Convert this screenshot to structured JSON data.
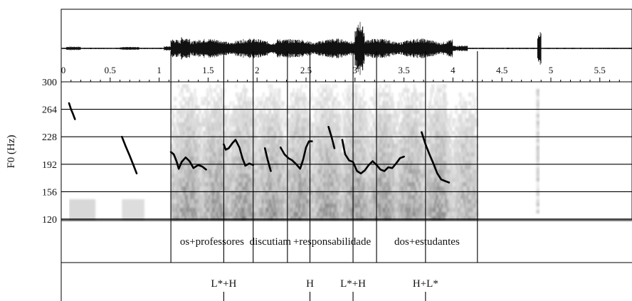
{
  "chart_data": {
    "type": "line",
    "title": "",
    "ylabel": "F0 (Hz)",
    "xlabel": "",
    "xlim": [
      0,
      5.75
    ],
    "ylim": [
      120,
      300
    ],
    "x_ticks": [
      {
        "value": 0,
        "label": "0"
      },
      {
        "value": 0.5,
        "label": "0.5"
      },
      {
        "value": 1,
        "label": "1"
      },
      {
        "value": 1.5,
        "label": "1.5"
      },
      {
        "value": 2,
        "label": "2"
      },
      {
        "value": 2.5,
        "label": "2.5"
      },
      {
        "value": 3,
        "label": "3"
      },
      {
        "value": 3.5,
        "label": "3.5"
      },
      {
        "value": 4,
        "label": "4"
      },
      {
        "value": 4.5,
        "label": "4.5"
      },
      {
        "value": 5,
        "label": "5"
      },
      {
        "value": 5.5,
        "label": "5.5"
      }
    ],
    "y_ticks": [
      {
        "value": 300,
        "label": "300"
      },
      {
        "value": 264,
        "label": "264"
      },
      {
        "value": 228,
        "label": "228"
      },
      {
        "value": 192,
        "label": "192"
      },
      {
        "value": 156,
        "label": "156"
      },
      {
        "value": 120,
        "label": "120"
      }
    ],
    "pitch_contours": [
      [
        [
          0.08,
          272
        ],
        [
          0.1,
          264
        ],
        [
          0.12,
          258
        ],
        [
          0.14,
          251
        ]
      ],
      [
        [
          0.62,
          228
        ],
        [
          0.66,
          215
        ],
        [
          0.7,
          203
        ],
        [
          0.74,
          190
        ],
        [
          0.77,
          180
        ]
      ],
      [
        [
          1.12,
          208
        ],
        [
          1.15,
          205
        ],
        [
          1.18,
          195
        ],
        [
          1.2,
          186
        ],
        [
          1.23,
          195
        ],
        [
          1.27,
          201
        ],
        [
          1.31,
          196
        ],
        [
          1.35,
          187
        ],
        [
          1.4,
          191
        ],
        [
          1.44,
          189
        ],
        [
          1.48,
          185
        ]
      ],
      [
        [
          1.66,
          218
        ],
        [
          1.68,
          211
        ],
        [
          1.71,
          213
        ],
        [
          1.75,
          220
        ],
        [
          1.78,
          224
        ],
        [
          1.82,
          214
        ],
        [
          1.85,
          200
        ],
        [
          1.88,
          190
        ],
        [
          1.92,
          193
        ],
        [
          1.96,
          191
        ]
      ],
      [
        [
          2.08,
          213
        ],
        [
          2.11,
          197
        ],
        [
          2.14,
          183
        ]
      ],
      [
        [
          2.24,
          214
        ],
        [
          2.28,
          205
        ],
        [
          2.32,
          200
        ],
        [
          2.36,
          197
        ],
        [
          2.4,
          192
        ],
        [
          2.44,
          186
        ],
        [
          2.47,
          198
        ],
        [
          2.5,
          214
        ],
        [
          2.53,
          222
        ],
        [
          2.56,
          222
        ]
      ],
      [
        [
          2.73,
          241
        ],
        [
          2.76,
          228
        ],
        [
          2.79,
          213
        ]
      ],
      [
        [
          2.87,
          224
        ],
        [
          2.9,
          205
        ],
        [
          2.94,
          197
        ],
        [
          2.98,
          195
        ],
        [
          3.02,
          183
        ],
        [
          3.06,
          180
        ],
        [
          3.1,
          184
        ],
        [
          3.14,
          191
        ],
        [
          3.18,
          196
        ],
        [
          3.22,
          191
        ],
        [
          3.26,
          185
        ],
        [
          3.3,
          183
        ],
        [
          3.34,
          188
        ],
        [
          3.38,
          187
        ],
        [
          3.42,
          193
        ],
        [
          3.46,
          200
        ],
        [
          3.5,
          202
        ]
      ],
      [
        [
          3.68,
          234
        ],
        [
          3.72,
          218
        ],
        [
          3.76,
          205
        ],
        [
          3.8,
          193
        ],
        [
          3.84,
          180
        ],
        [
          3.88,
          172
        ],
        [
          3.92,
          170
        ],
        [
          3.96,
          168
        ]
      ]
    ],
    "segment_boundaries": [
      1.12,
      1.66,
      1.96,
      2.31,
      2.54,
      2.98,
      3.22,
      3.72,
      4.25
    ],
    "words": [
      {
        "text": "os+professores",
        "start": 1.12,
        "end": 1.96
      },
      {
        "text": "discutiam",
        "start": 1.96,
        "end": 2.31
      },
      {
        "text": "+responsabilidade",
        "start": 2.31,
        "end": 3.22
      },
      {
        "text": "dos+estudantes",
        "start": 3.22,
        "end": 4.25
      }
    ],
    "tones": [
      {
        "label": "L*+H",
        "time": 1.66
      },
      {
        "label": "H",
        "time": 2.54
      },
      {
        "label": "L*+H",
        "time": 2.98
      },
      {
        "label": "H+L*",
        "time": 3.72
      }
    ]
  }
}
